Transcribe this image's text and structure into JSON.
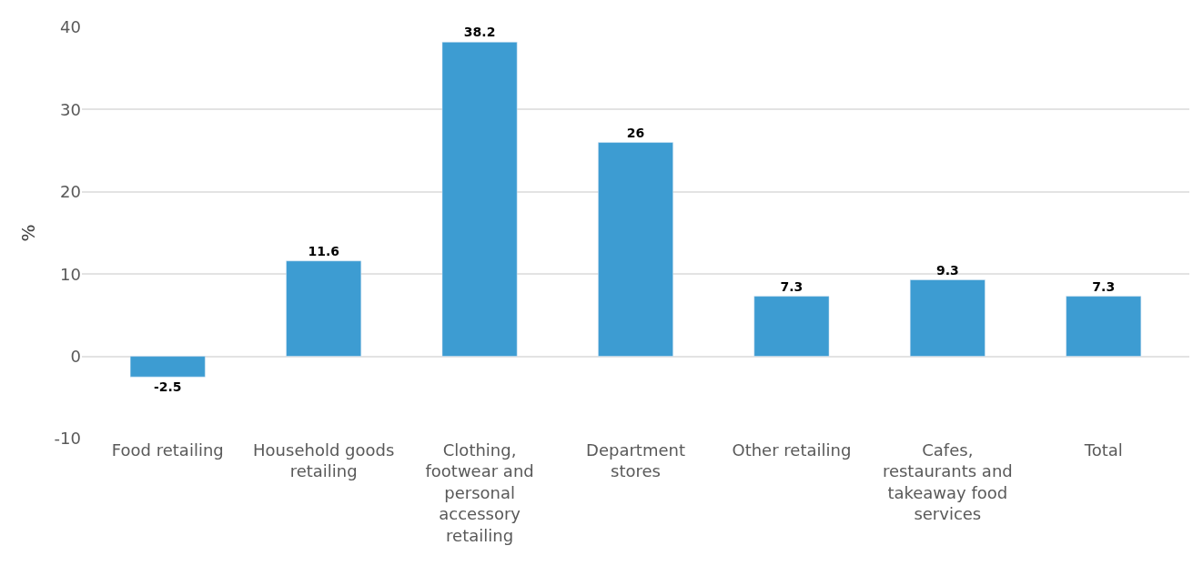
{
  "chart_data": {
    "type": "bar",
    "categories": [
      "Food retailing",
      "Household goods retailing",
      "Clothing, footwear and personal accessory retailing",
      "Department stores",
      "Other retailing",
      "Cafes, restaurants and takeaway food services",
      "Total"
    ],
    "values": [
      -2.5,
      11.6,
      38.2,
      26,
      7.3,
      9.3,
      7.3
    ],
    "color": "#3d9cd2",
    "ylabel": "%",
    "ylim": [
      -10,
      40
    ],
    "yticks": [
      -10,
      0,
      10,
      20,
      30,
      40
    ],
    "grid": "y",
    "data_labels": true,
    "legend": false
  }
}
